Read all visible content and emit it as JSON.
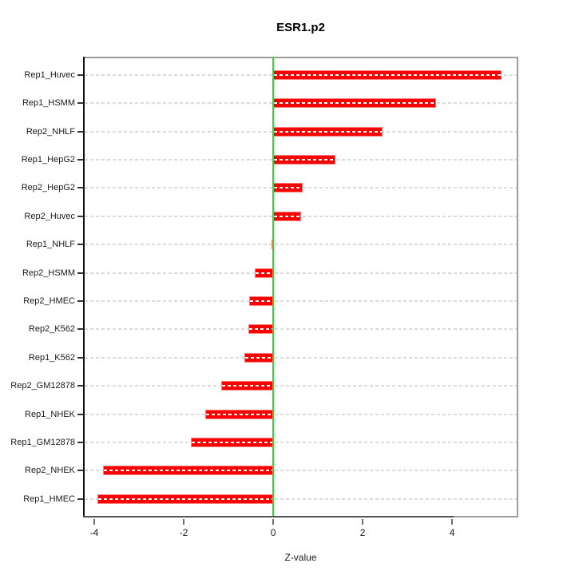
{
  "chart_data": {
    "type": "bar",
    "orientation": "horizontal",
    "title": "ESR1.p2",
    "xlabel": "Z-value",
    "ylabel": "",
    "categories": [
      "Rep1_Huvec",
      "Rep1_HSMM",
      "Rep2_NHLF",
      "Rep1_HepG2",
      "Rep2_HepG2",
      "Rep2_Huvec",
      "Rep1_NHLF",
      "Rep2_HSMM",
      "Rep2_HMEC",
      "Rep2_K562",
      "Rep1_K562",
      "Rep2_GM12878",
      "Rep1_NHEK",
      "Rep1_GM12878",
      "Rep2_NHEK",
      "Rep1_HMEC"
    ],
    "values": [
      5.11,
      3.64,
      2.44,
      1.39,
      0.66,
      0.63,
      -0.03,
      -0.42,
      -0.54,
      -0.55,
      -0.65,
      -1.16,
      -1.52,
      -1.84,
      -3.81,
      -3.93
    ],
    "xlim": [
      -4.25,
      5.48
    ],
    "x_ticks": [
      {
        "label": "-4",
        "value": -4
      },
      {
        "label": "-2",
        "value": -2
      },
      {
        "label": "0",
        "value": 0
      },
      {
        "label": "2",
        "value": 2
      },
      {
        "label": "4",
        "value": 4
      }
    ],
    "grid": true,
    "zero_line": true,
    "legend": null
  },
  "colors": {
    "bar_fill": "#fb0000",
    "bar_border": "#ff8080",
    "bar_dash": "#ffffff",
    "zero_line": "#1fe51f",
    "gridline": "#dbdbdb",
    "plot_border": "#9c9c9c",
    "axis_left": "#111111",
    "axis_bottom": "#555555",
    "background": "#ffffff"
  }
}
